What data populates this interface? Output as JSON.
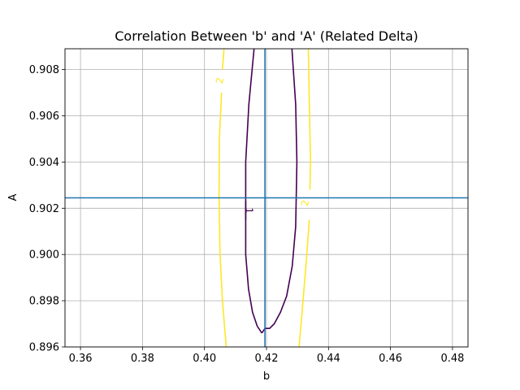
{
  "chart_data": {
    "type": "contour",
    "title": "Correlation Between 'b' and 'A' (Related Delta)",
    "xlabel": "b",
    "ylabel": "A",
    "xlim": [
      0.355,
      0.485
    ],
    "ylim": [
      0.896,
      0.9089
    ],
    "xticks": [
      "0.36",
      "0.38",
      "0.40",
      "0.42",
      "0.44",
      "0.46",
      "0.48"
    ],
    "yticks": [
      "0.896",
      "0.898",
      "0.900",
      "0.902",
      "0.904",
      "0.906",
      "0.908"
    ],
    "grid": true,
    "best_fit": {
      "b": 0.4195,
      "A": 0.90245,
      "color": "#1f77b4"
    },
    "contours": [
      {
        "level_label": "1",
        "color": "#440154",
        "points": [
          [
            0.4133,
            0.9014
          ],
          [
            0.4133,
            0.904
          ],
          [
            0.4143,
            0.9065
          ],
          [
            0.416,
            0.9089
          ]
        ],
        "segments": [
          [
            [
              0.4133,
              0.9015
            ],
            [
              0.4133,
              0.904
            ],
            [
              0.4143,
              0.9065
            ],
            [
              0.416,
              0.9089
            ]
          ],
          [
            [
              0.4133,
              0.9023
            ],
            [
              0.4133,
              0.9
            ],
            [
              0.4142,
              0.8985
            ],
            [
              0.4155,
              0.8975
            ],
            [
              0.417,
              0.8969
            ],
            [
              0.4185,
              0.8966
            ]
          ],
          [
            [
              0.4185,
              0.8966
            ],
            [
              0.4195,
              0.8968
            ],
            [
              0.421,
              0.8968
            ],
            [
              0.4225,
              0.897
            ],
            [
              0.4245,
              0.8975
            ],
            [
              0.4265,
              0.8982
            ],
            [
              0.4283,
              0.8995
            ],
            [
              0.4294,
              0.9012
            ],
            [
              0.4298,
              0.904
            ],
            [
              0.4294,
              0.9065
            ],
            [
              0.4282,
              0.9089
            ]
          ]
        ]
      },
      {
        "level_label": "2",
        "color": "#fde725",
        "segments": [
          [
            [
              0.407,
              0.896
            ],
            [
              0.4058,
              0.898
            ],
            [
              0.405,
              0.9
            ],
            [
              0.4047,
              0.9025
            ],
            [
              0.4048,
              0.905
            ],
            [
              0.4055,
              0.907
            ]
          ],
          [
            [
              0.4058,
              0.908
            ],
            [
              0.4063,
              0.9089
            ]
          ],
          [
            [
              0.4335,
              0.9089
            ],
            [
              0.4338,
              0.9065
            ],
            [
              0.4342,
              0.904
            ],
            [
              0.434,
              0.9028
            ]
          ],
          [
            [
              0.4338,
              0.9015
            ],
            [
              0.433,
              0.9
            ],
            [
              0.4318,
              0.898
            ],
            [
              0.4305,
              0.896
            ]
          ]
        ],
        "labels": [
          [
            0.406,
            0.9075
          ],
          [
            0.4335,
            0.9022
          ]
        ]
      }
    ],
    "contour_label_one": [
      0.4133,
      0.9019
    ]
  }
}
